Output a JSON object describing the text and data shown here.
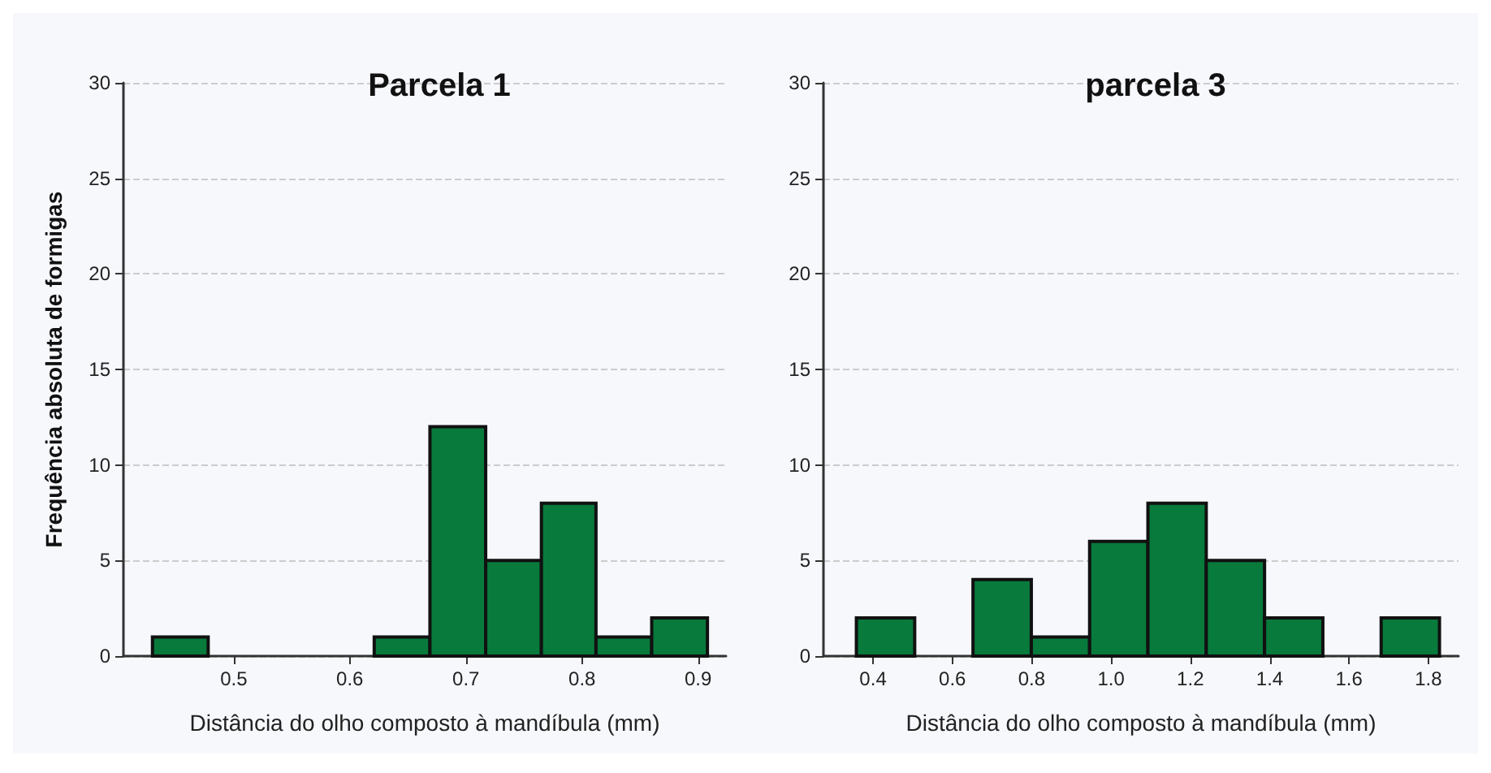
{
  "chart_data": [
    {
      "type": "histogram",
      "title": "Parcela 1",
      "xlabel": "Distância do olho composto à mandíbula (mm)",
      "ylabel": "Frequência absoluta de formigas",
      "bins": [
        0.43,
        0.478,
        0.621,
        0.669,
        0.717,
        0.765,
        0.812,
        0.86,
        0.908
      ],
      "values": [
        1,
        0,
        1,
        12,
        5,
        8,
        1,
        2
      ],
      "color": "#087a3c",
      "xlim": [
        0.405,
        0.924
      ],
      "xticks": [
        0.5,
        0.6,
        0.7,
        0.8,
        0.9
      ],
      "ylim": [
        0,
        30
      ],
      "yticks": [
        0,
        5,
        10,
        15,
        20,
        25,
        30
      ],
      "grid": "y"
    },
    {
      "type": "histogram",
      "title": "parcela 3",
      "xlabel": "Distância do olho composto à mandíbula (mm)",
      "bins": [
        0.358,
        0.505,
        0.652,
        0.799,
        0.946,
        1.093,
        1.24,
        1.387,
        1.534,
        1.681,
        1.828
      ],
      "values": [
        2,
        0,
        4,
        1,
        6,
        8,
        5,
        2,
        0,
        2
      ],
      "color": "#087a3c",
      "xlim": [
        0.275,
        1.876
      ],
      "xticks": [
        0.4,
        0.6,
        0.8,
        {
          "value": 1,
          "label": "1.0"
        },
        1.2,
        1.4,
        1.6,
        1.8
      ],
      "ylim": [
        0,
        30
      ],
      "yticks": [
        0,
        5,
        10,
        15,
        20,
        25,
        30
      ],
      "grid": "y"
    }
  ]
}
